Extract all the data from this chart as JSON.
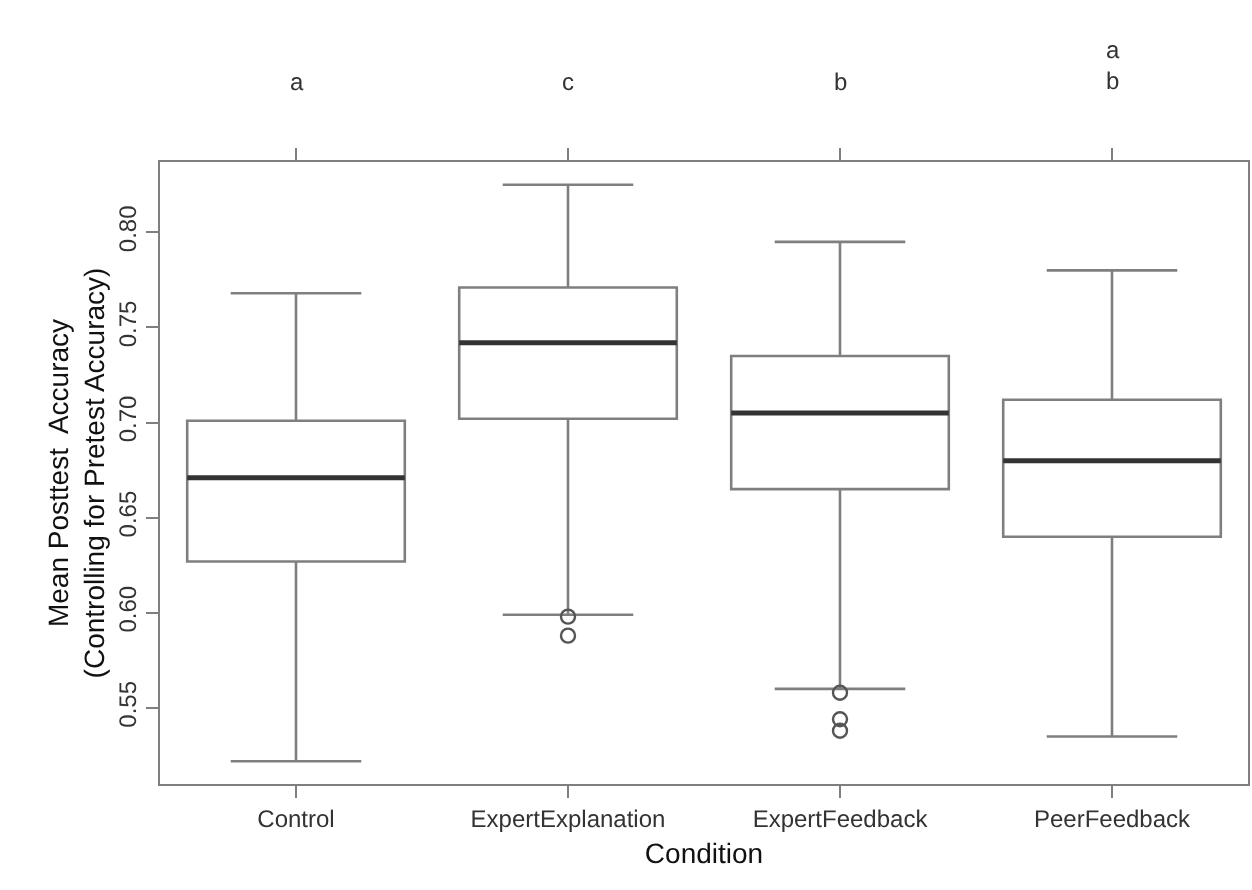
{
  "chart_data": {
    "type": "box",
    "xlabel": "Condition",
    "ylabel": "Mean Posttest  Accuracy\n(Controlling for Pretest Accuracy)",
    "categories": [
      "Control",
      "ExpertExplanation",
      "ExpertFeedback",
      "PeerFeedback"
    ],
    "boxes": [
      {
        "low": 0.522,
        "q1": 0.627,
        "median": 0.671,
        "q3": 0.701,
        "high": 0.768
      },
      {
        "low": 0.599,
        "q1": 0.702,
        "median": 0.742,
        "q3": 0.771,
        "high": 0.825,
        "outliers": [
          0.598,
          0.588
        ]
      },
      {
        "low": 0.56,
        "q1": 0.665,
        "median": 0.705,
        "q3": 0.735,
        "high": 0.795,
        "outliers": [
          0.558,
          0.544,
          0.538
        ]
      },
      {
        "low": 0.535,
        "q1": 0.64,
        "median": 0.68,
        "q3": 0.712,
        "high": 0.78
      }
    ],
    "color": "#7f7f7f",
    "ylim": [
      0.51,
      0.837
    ],
    "yticks": [
      0.55,
      {
        "value": 0.6,
        "label": "0.60"
      },
      0.65,
      {
        "value": 0.7,
        "label": "0.70"
      },
      0.75,
      {
        "value": 0.8,
        "label": "0.80"
      }
    ],
    "grid": false,
    "annotations": [
      "a",
      "c",
      "b",
      "a\nb"
    ]
  }
}
